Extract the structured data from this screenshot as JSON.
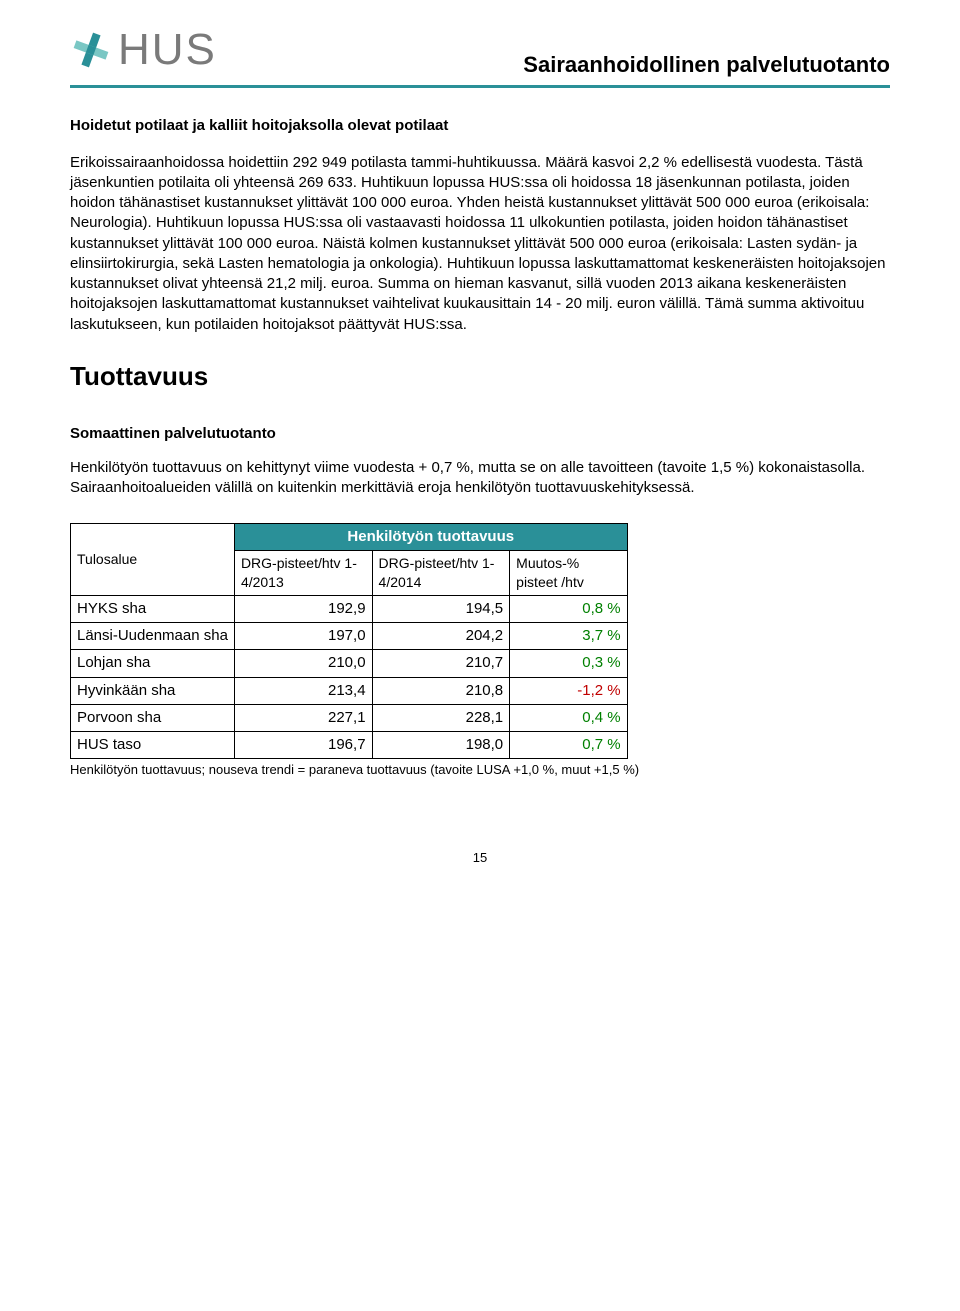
{
  "header": {
    "logo_text": "HUS",
    "doc_title": "Sairaanhoidollinen palvelutuotanto"
  },
  "section1": {
    "heading": "Hoidetut potilaat ja kalliit hoitojaksolla olevat potilaat",
    "body": "Erikoissairaanhoidossa hoidettiin 292 949 potilasta tammi-huhtikuussa. Määrä kasvoi 2,2 % edellisestä vuodesta. Tästä jäsenkuntien potilaita oli yhteensä 269 633. Huhtikuun lopussa HUS:ssa oli hoidossa 18 jäsenkunnan potilasta, joiden hoidon tähänastiset kustannukset ylittävät 100 000 euroa. Yhden heistä kustannukset ylittävät 500 000 euroa (erikoisala: Neurologia). Huhtikuun lopussa HUS:ssa oli vastaavasti hoidossa 11 ulkokuntien potilasta, joiden hoidon tähänastiset kustannukset ylittävät 100 000 euroa. Näistä kolmen kustannukset ylittävät 500 000 euroa (erikoisala: Lasten sydän- ja elinsiirtokirurgia, sekä Lasten hematologia ja onkologia). Huhtikuun lopussa laskuttamattomat keskeneräisten hoitojaksojen kustannukset olivat yhteensä 21,2 milj. euroa. Summa on hieman kasvanut, sillä vuoden 2013 aikana keskeneräisten hoitojaksojen laskuttamattomat kustannukset vaihtelivat kuukausittain 14 - 20 milj. euron välillä. Tämä summa aktivoituu laskutukseen, kun potilaiden hoitojaksot päättyvät HUS:ssa."
  },
  "section2": {
    "h2": "Tuottavuus",
    "sub_heading": "Somaattinen palvelutuotanto",
    "body": "Henkilötyön tuottavuus on kehittynyt viime vuodesta + 0,7 %, mutta se on alle tavoitteen (tavoite 1,5 %) kokonaistasolla. Sairaanhoitoalueiden välillä on kuitenkin merkittäviä eroja henkilötyön tuottavuuskehityksessä."
  },
  "table": {
    "left_header": "Tulosalue",
    "banner": "Henkilötyön tuottavuus",
    "col1": "DRG-pisteet/htv 1-4/2013",
    "col2": "DRG-pisteet/htv 1-4/2014",
    "col3": "Muutos-% pisteet /htv",
    "rows": [
      {
        "label": "HYKS sha",
        "v2013": "192,9",
        "v2014": "194,5",
        "delta": "0,8 %",
        "delta_sign": "pos"
      },
      {
        "label": "Länsi-Uudenmaan sha",
        "v2013": "197,0",
        "v2014": "204,2",
        "delta": "3,7 %",
        "delta_sign": "pos"
      },
      {
        "label": "Lohjan sha",
        "v2013": "210,0",
        "v2014": "210,7",
        "delta": "0,3 %",
        "delta_sign": "pos"
      },
      {
        "label": "Hyvinkään sha",
        "v2013": "213,4",
        "v2014": "210,8",
        "delta": "-1,2 %",
        "delta_sign": "neg"
      },
      {
        "label": "Porvoon sha",
        "v2013": "227,1",
        "v2014": "228,1",
        "delta": "0,4 %",
        "delta_sign": "pos"
      },
      {
        "label": "HUS taso",
        "v2013": "196,7",
        "v2014": "198,0",
        "delta": "0,7 %",
        "delta_sign": "pos"
      }
    ],
    "footnote": "Henkilötyön tuottavuus; nouseva trendi = paraneva tuottavuus (tavoite LUSA +1,0 %, muut +1,5 %)"
  },
  "page_number": "15",
  "colors": {
    "accent": "#2a9098",
    "neg": "#c00000",
    "pos": "#008000"
  }
}
